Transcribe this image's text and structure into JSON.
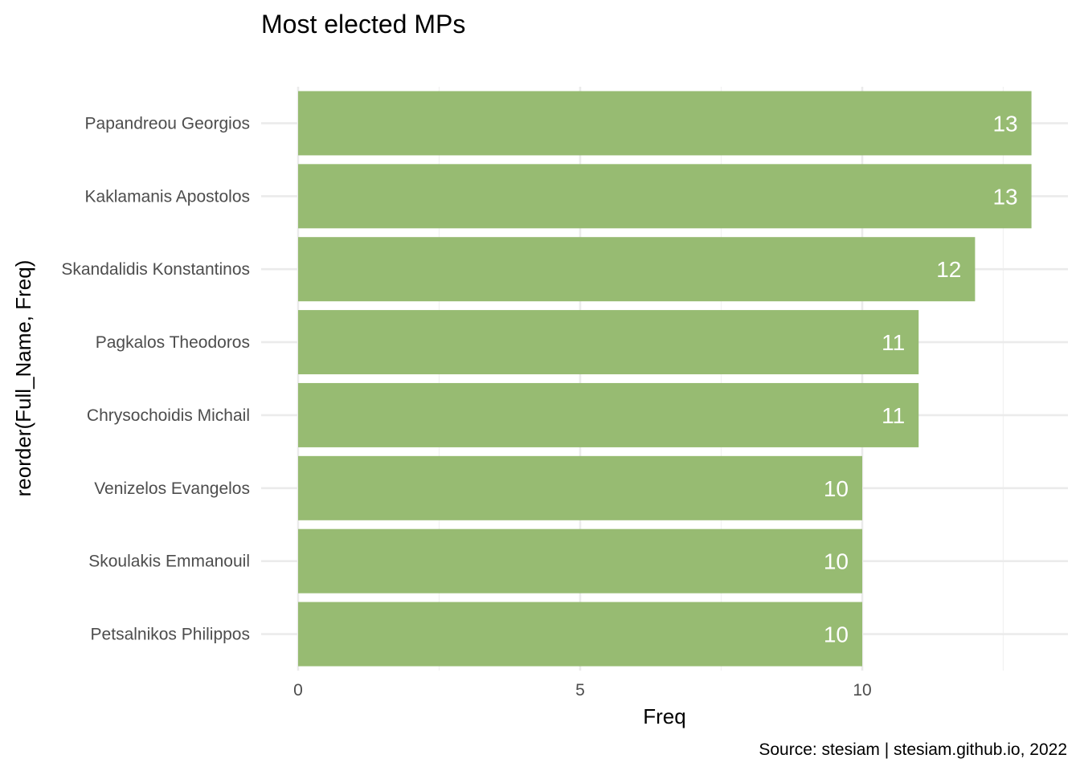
{
  "chart_data": {
    "type": "bar",
    "orientation": "horizontal",
    "title": "Most elected MPs",
    "xlabel": "Freq",
    "ylabel": "reorder(Full_Name, Freq)",
    "caption": "Source: stesiam | stesiam.github.io, 2022",
    "categories": [
      "Papandreou Georgios",
      "Kaklamanis Apostolos",
      "Skandalidis Konstantinos",
      "Pagkalos Theodoros",
      "Chrysochoidis Michail",
      "Venizelos Evangelos",
      "Skoulakis Emmanouil",
      "Petsalnikos Philippos"
    ],
    "values": [
      13,
      13,
      12,
      11,
      11,
      10,
      10,
      10
    ],
    "xlim": [
      0,
      13
    ],
    "x_ticks": [
      0,
      5,
      10
    ],
    "x_tick_labels": [
      "0",
      "5",
      "10"
    ],
    "x_minor_ticks": [
      2.5,
      7.5,
      12.5
    ],
    "grid": true,
    "legend": "none",
    "bar_color": "#97bb72",
    "label_color": "#ffffff"
  }
}
